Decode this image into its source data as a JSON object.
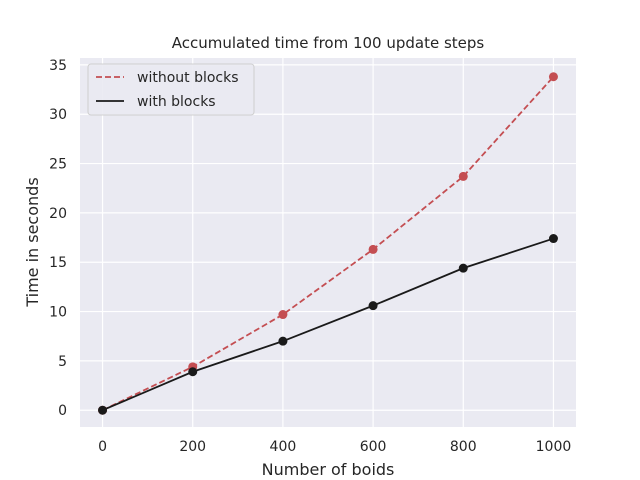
{
  "chart_data": {
    "type": "line",
    "title": "Accumulated time from 100 update steps",
    "xlabel": "Number of boids",
    "ylabel": "Time in seconds",
    "x": [
      0,
      200,
      400,
      600,
      800,
      1000
    ],
    "xlim": [
      -50,
      1050
    ],
    "ylim": [
      -1.7,
      35.7
    ],
    "xticks": [
      0,
      200,
      400,
      600,
      800,
      1000
    ],
    "yticks": [
      0,
      5,
      10,
      15,
      20,
      25,
      30,
      35
    ],
    "grid": true,
    "legend_position": "top-left",
    "series": [
      {
        "name": "without blocks",
        "values": [
          0,
          4.4,
          9.7,
          16.3,
          23.7,
          33.8
        ],
        "color": "#c44e52",
        "line_style": "dashed"
      },
      {
        "name": "with blocks",
        "values": [
          0,
          3.9,
          7.0,
          10.6,
          14.4,
          17.4
        ],
        "color": "#1a1a1a",
        "line_style": "solid"
      }
    ],
    "colors": {
      "plot_background": "#eaeaf2",
      "grid": "#ffffff"
    }
  }
}
